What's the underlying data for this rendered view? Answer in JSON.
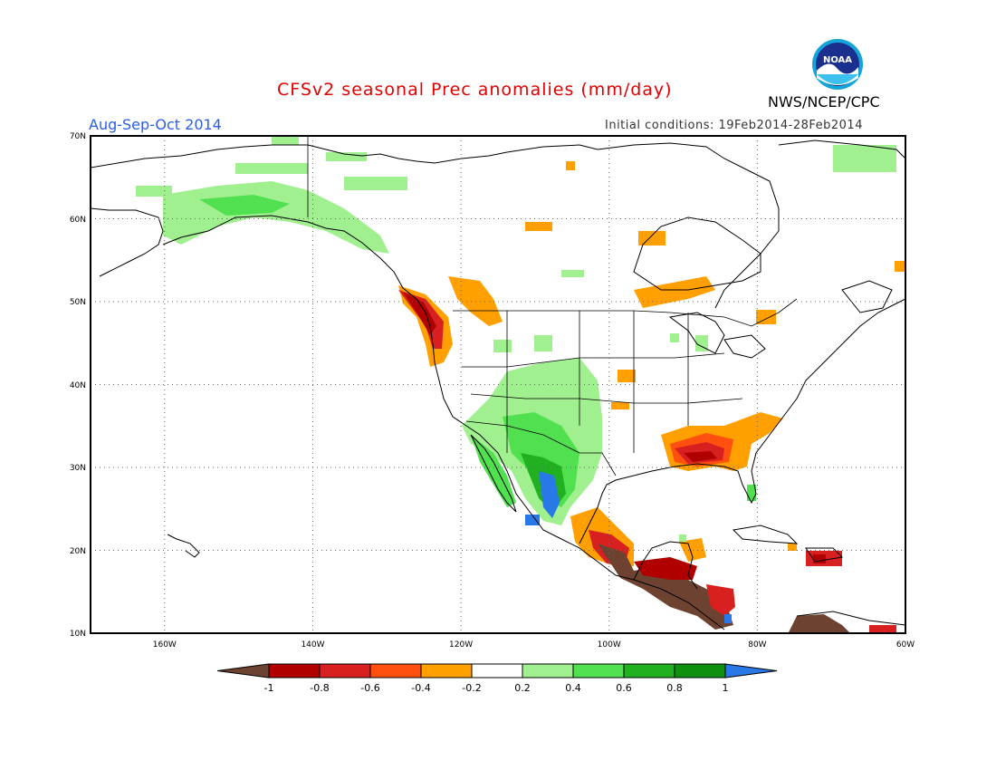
{
  "header": {
    "title": "CFSv2 seasonal Prec anomalies (mm/day)",
    "season": "Aug-Sep-Oct 2014",
    "initial_conditions": "Initial conditions: 19Feb2014-28Feb2014",
    "agency": "NWS/NCEP/CPC",
    "logo_text": "NOAA"
  },
  "map": {
    "projection": "lat-lon",
    "lon_range": [
      -170,
      -60
    ],
    "lat_range": [
      10,
      70
    ],
    "lat_labels": [
      "10N",
      "20N",
      "30N",
      "40N",
      "50N",
      "60N",
      "70N"
    ],
    "lon_labels": [
      "160W",
      "140W",
      "120W",
      "100W",
      "80W",
      "60W"
    ],
    "gridlines": true
  },
  "colorbar": {
    "levels": [
      "-1",
      "-0.8",
      "-0.6",
      "-0.4",
      "-0.2",
      "0.2",
      "0.4",
      "0.6",
      "0.8",
      "1"
    ],
    "colors": [
      "#6e4230",
      "#b00000",
      "#d82020",
      "#ff5010",
      "#ffa000",
      "#ffffff",
      "#a0f090",
      "#50e050",
      "#20b020",
      "#109010",
      "#2878e8"
    ]
  }
}
